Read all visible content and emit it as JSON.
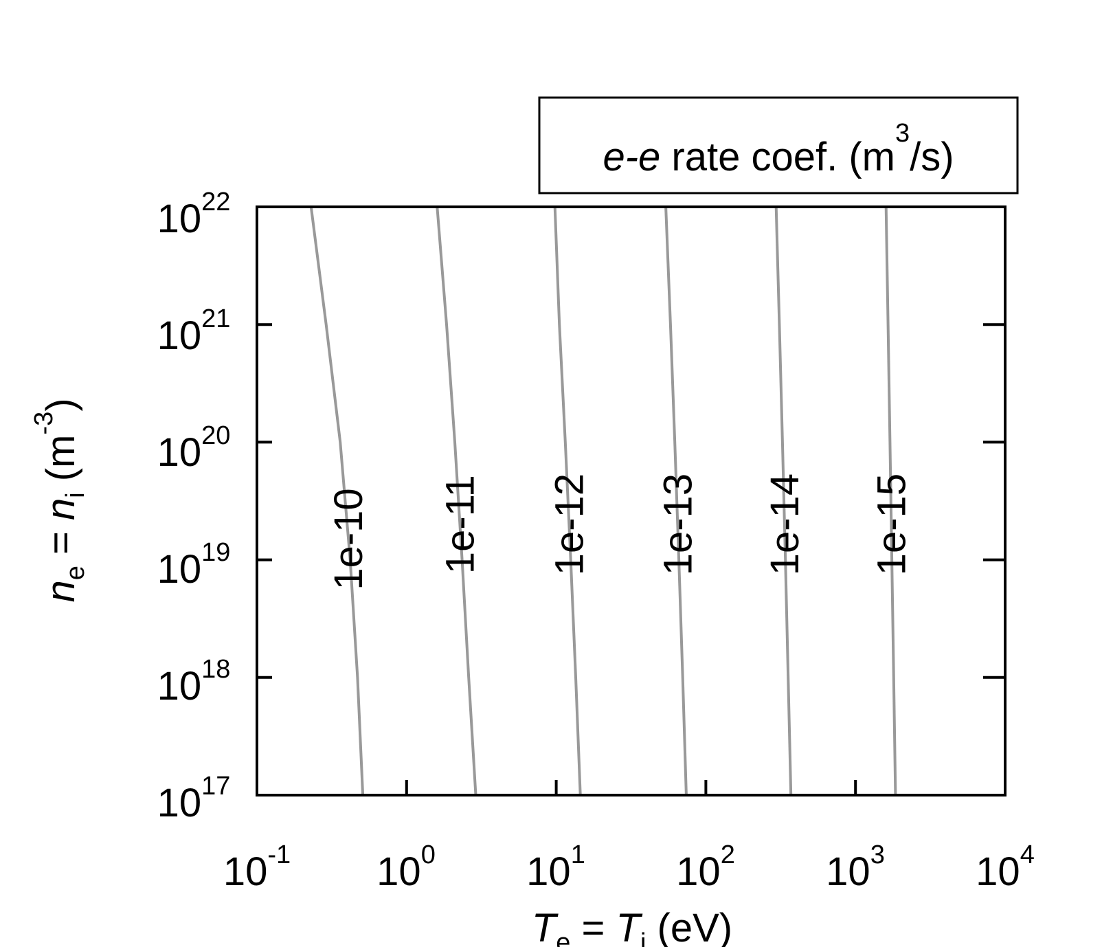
{
  "chart_data": {
    "type": "contour",
    "title": {
      "italic_part": "e-e",
      "text": " rate coef. (m",
      "superscript": "3",
      "suffix": "/s)"
    },
    "xlabel": {
      "var": "T",
      "sub": "e",
      "mid": " = ",
      "var2": "T",
      "sub2": "i",
      "unit": " (eV)"
    },
    "ylabel": {
      "var": "n",
      "sub": "e",
      "mid": " = ",
      "var2": "n",
      "sub2": "i",
      "unit": " (m",
      "exp": "-3",
      "close": ")"
    },
    "x_scale": "log",
    "y_scale": "log",
    "xlim": [
      0.1,
      10000
    ],
    "ylim": [
      1e+17,
      1e+22
    ],
    "x_ticks": [
      {
        "base": "10",
        "exp": "-1"
      },
      {
        "base": "10",
        "exp": "0"
      },
      {
        "base": "10",
        "exp": "1"
      },
      {
        "base": "10",
        "exp": "2"
      },
      {
        "base": "10",
        "exp": "3"
      },
      {
        "base": "10",
        "exp": "4"
      }
    ],
    "y_ticks": [
      {
        "base": "10",
        "exp": "17"
      },
      {
        "base": "10",
        "exp": "18"
      },
      {
        "base": "10",
        "exp": "19"
      },
      {
        "base": "10",
        "exp": "20"
      },
      {
        "base": "10",
        "exp": "21"
      },
      {
        "base": "10",
        "exp": "22"
      }
    ],
    "line_color": "#999999",
    "grid": false,
    "contours": [
      {
        "label": "1e-10",
        "label_y": 1.5e+19,
        "points": [
          [
            0.51,
            1e+17
          ],
          [
            0.47,
            1e+18
          ],
          [
            0.42,
            1e+19
          ],
          [
            0.36,
            1e+20
          ],
          [
            0.29,
            1e+21
          ],
          [
            0.23,
            1e+22
          ]
        ]
      },
      {
        "label": "1e-11",
        "label_y": 2e+19,
        "points": [
          [
            2.9,
            1e+17
          ],
          [
            2.6,
            1e+18
          ],
          [
            2.35,
            1e+19
          ],
          [
            2.1,
            1e+20
          ],
          [
            1.85,
            1e+21
          ],
          [
            1.6,
            1e+22
          ]
        ]
      },
      {
        "label": "1e-12",
        "label_y": 2e+19,
        "points": [
          [
            14.5,
            1e+17
          ],
          [
            13.5,
            1e+18
          ],
          [
            12.5,
            1e+19
          ],
          [
            11.5,
            1e+20
          ],
          [
            10.5,
            1e+21
          ],
          [
            9.8,
            1e+22
          ]
        ]
      },
      {
        "label": "1e-13",
        "label_y": 2e+19,
        "points": [
          [
            74,
            1e+17
          ],
          [
            70,
            1e+18
          ],
          [
            66,
            1e+19
          ],
          [
            62,
            1e+20
          ],
          [
            58,
            1e+21
          ],
          [
            54,
            1e+22
          ]
        ]
      },
      {
        "label": "1e-14",
        "label_y": 2e+19,
        "points": [
          [
            370,
            1e+17
          ],
          [
            355,
            1e+18
          ],
          [
            340,
            1e+19
          ],
          [
            325,
            1e+20
          ],
          [
            310,
            1e+21
          ],
          [
            295,
            1e+22
          ]
        ]
      },
      {
        "label": "1e-15",
        "label_y": 2e+19,
        "points": [
          [
            1850,
            1e+17
          ],
          [
            1800,
            1e+18
          ],
          [
            1750,
            1e+19
          ],
          [
            1700,
            1e+20
          ],
          [
            1650,
            1e+21
          ],
          [
            1600,
            1e+22
          ]
        ]
      }
    ]
  }
}
